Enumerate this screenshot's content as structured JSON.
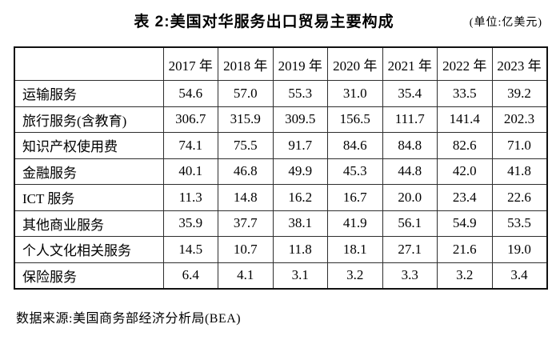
{
  "title": "表 2:美国对华服务出口贸易主要构成",
  "unit_note": "(单位:亿美元)",
  "table": {
    "corner_label": "",
    "columns": [
      "2017 年",
      "2018 年",
      "2019 年",
      "2020 年",
      "2021 年",
      "2022 年",
      "2023 年"
    ],
    "rows": [
      {
        "label": "运输服务",
        "values": [
          "54.6",
          "57.0",
          "55.3",
          "31.0",
          "35.4",
          "33.5",
          "39.2"
        ]
      },
      {
        "label": "旅行服务(含教育)",
        "values": [
          "306.7",
          "315.9",
          "309.5",
          "156.5",
          "111.7",
          "141.4",
          "202.3"
        ]
      },
      {
        "label": "知识产权使用费",
        "values": [
          "74.1",
          "75.5",
          "91.7",
          "84.6",
          "84.8",
          "82.6",
          "71.0"
        ]
      },
      {
        "label": "金融服务",
        "values": [
          "40.1",
          "46.8",
          "49.9",
          "45.3",
          "44.8",
          "42.0",
          "41.8"
        ]
      },
      {
        "label": "ICT 服务",
        "values": [
          "11.3",
          "14.8",
          "16.2",
          "16.7",
          "20.0",
          "23.4",
          "22.6"
        ]
      },
      {
        "label": "其他商业服务",
        "values": [
          "35.9",
          "37.7",
          "38.1",
          "41.9",
          "56.1",
          "54.9",
          "53.5"
        ]
      },
      {
        "label": "个人文化相关服务",
        "values": [
          "14.5",
          "10.7",
          "11.8",
          "18.1",
          "27.1",
          "21.6",
          "19.0"
        ]
      },
      {
        "label": "保险服务",
        "values": [
          "6.4",
          "4.1",
          "3.1",
          "3.2",
          "3.3",
          "3.2",
          "3.4"
        ]
      }
    ]
  },
  "source": "数据来源:美国商务部经济分析局(BEA)",
  "colors": {
    "text": "#000000",
    "background": "#ffffff",
    "border": "#2e2e2e"
  }
}
